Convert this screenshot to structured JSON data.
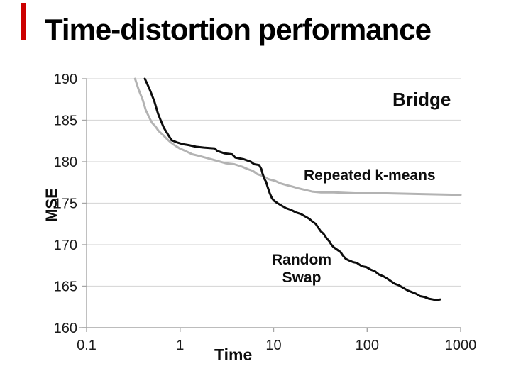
{
  "slide": {
    "title": "Time-distortion performance",
    "accent_color": "#cc0000",
    "background": "#ffffff"
  },
  "chart_data": {
    "type": "line",
    "title": "",
    "xlabel": "Time",
    "ylabel": "MSE",
    "dataset_label": "Bridge",
    "x_scale": "log",
    "xlim": [
      0.1,
      1000
    ],
    "ylim": [
      160,
      190
    ],
    "x_ticks": [
      0.1,
      1,
      10,
      100,
      1000
    ],
    "x_tick_labels": [
      "0.1",
      "1",
      "10",
      "100",
      "1000"
    ],
    "y_ticks": [
      160,
      165,
      170,
      175,
      180,
      185,
      190
    ],
    "y_tick_labels": [
      "160",
      "165",
      "170",
      "175",
      "180",
      "185",
      "190"
    ],
    "grid": "horizontal",
    "legend_position": "inline-annotations",
    "colors": {
      "grid": "#d9d9d9",
      "axis": "#a6a6a6",
      "tick_text": "#1a1a1a"
    },
    "annotations": {
      "dataset": "Bridge",
      "series1": "Repeated k-means",
      "series2_line1": "Random",
      "series2_line2": "Swap"
    },
    "series": [
      {
        "name": "Repeated k-means",
        "color": "#b3b3b3",
        "width": 3,
        "points": [
          [
            0.33,
            190
          ],
          [
            0.36,
            188.7
          ],
          [
            0.4,
            187.4
          ],
          [
            0.43,
            186.2
          ],
          [
            0.47,
            185.3
          ],
          [
            0.5,
            184.7
          ],
          [
            0.55,
            184.2
          ],
          [
            0.59,
            183.7
          ],
          [
            0.66,
            183.2
          ],
          [
            0.73,
            182.7
          ],
          [
            0.8,
            182.3
          ],
          [
            0.87,
            182.0
          ],
          [
            0.99,
            181.6
          ],
          [
            1.14,
            181.3
          ],
          [
            1.35,
            180.9
          ],
          [
            1.6,
            180.7
          ],
          [
            2.0,
            180.4
          ],
          [
            2.5,
            180.1
          ],
          [
            3.1,
            179.8
          ],
          [
            3.8,
            179.7
          ],
          [
            4.6,
            179.4
          ],
          [
            5.3,
            179.1
          ],
          [
            6.0,
            178.9
          ],
          [
            6.7,
            178.5
          ],
          [
            7.6,
            178.3
          ],
          [
            8.8,
            177.9
          ],
          [
            10.3,
            177.7
          ],
          [
            11.8,
            177.4
          ],
          [
            13.6,
            177.2
          ],
          [
            15.9,
            177.0
          ],
          [
            18.3,
            176.8
          ],
          [
            21.8,
            176.6
          ],
          [
            25.9,
            176.4
          ],
          [
            32,
            176.3
          ],
          [
            44,
            176.3
          ],
          [
            74,
            176.2
          ],
          [
            162,
            176.2
          ],
          [
            389,
            176.1
          ],
          [
            1000,
            176.0
          ]
        ]
      },
      {
        "name": "Random Swap",
        "color": "#0d0d0d",
        "width": 3,
        "points": [
          [
            0.42,
            190
          ],
          [
            0.47,
            188.8
          ],
          [
            0.53,
            187.3
          ],
          [
            0.58,
            185.8
          ],
          [
            0.62,
            185.0
          ],
          [
            0.67,
            184.1
          ],
          [
            0.75,
            183.2
          ],
          [
            0.81,
            182.6
          ],
          [
            0.94,
            182.3
          ],
          [
            1.08,
            182.1
          ],
          [
            1.24,
            182.0
          ],
          [
            1.48,
            181.8
          ],
          [
            1.8,
            181.7
          ],
          [
            2.35,
            181.6
          ],
          [
            2.5,
            181.3
          ],
          [
            3.0,
            181.0
          ],
          [
            3.6,
            180.9
          ],
          [
            3.9,
            180.5
          ],
          [
            4.8,
            180.3
          ],
          [
            5.7,
            180.0
          ],
          [
            6.2,
            179.7
          ],
          [
            7.0,
            179.6
          ],
          [
            7.4,
            179.1
          ],
          [
            7.6,
            178.6
          ],
          [
            8.0,
            177.9
          ],
          [
            8.3,
            177.6
          ],
          [
            8.6,
            177.0
          ],
          [
            9.1,
            176.2
          ],
          [
            9.6,
            175.6
          ],
          [
            10.1,
            175.3
          ],
          [
            11,
            175.0
          ],
          [
            12.2,
            174.7
          ],
          [
            13.6,
            174.4
          ],
          [
            15.3,
            174.2
          ],
          [
            17.3,
            173.9
          ],
          [
            19.6,
            173.7
          ],
          [
            21.8,
            173.4
          ],
          [
            24.2,
            173.1
          ],
          [
            25.9,
            172.8
          ],
          [
            28.3,
            172.5
          ],
          [
            29.8,
            172.1
          ],
          [
            32,
            171.6
          ],
          [
            34.3,
            171.3
          ],
          [
            36.7,
            170.8
          ],
          [
            39.4,
            170.4
          ],
          [
            41.5,
            170.0
          ],
          [
            43.8,
            169.7
          ],
          [
            47.8,
            169.4
          ],
          [
            52.1,
            169.1
          ],
          [
            55,
            168.7
          ],
          [
            59,
            168.3
          ],
          [
            64,
            168.1
          ],
          [
            71,
            167.9
          ],
          [
            78,
            167.8
          ],
          [
            88,
            167.4
          ],
          [
            98,
            167.3
          ],
          [
            109,
            167.0
          ],
          [
            121,
            166.8
          ],
          [
            134,
            166.4
          ],
          [
            149,
            166.2
          ],
          [
            165,
            165.9
          ],
          [
            180,
            165.6
          ],
          [
            197,
            165.3
          ],
          [
            219,
            165.1
          ],
          [
            243,
            164.8
          ],
          [
            270,
            164.5
          ],
          [
            299,
            164.3
          ],
          [
            332,
            164.1
          ],
          [
            369,
            163.8
          ],
          [
            410,
            163.7
          ],
          [
            456,
            163.5
          ],
          [
            506,
            163.4
          ],
          [
            552,
            163.3
          ],
          [
            602,
            163.4
          ]
        ]
      }
    ]
  }
}
